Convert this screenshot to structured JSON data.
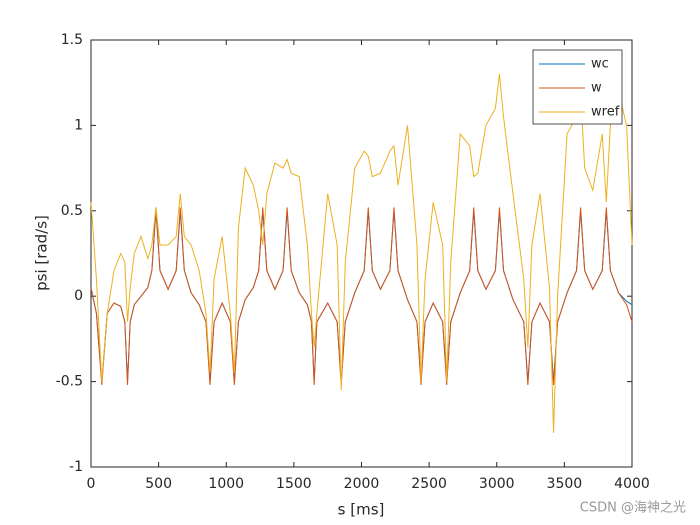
{
  "chart_data": {
    "type": "line",
    "xlabel": "s [ms]",
    "ylabel": "psi [rad/s]",
    "x": [
      0,
      40,
      80,
      120,
      170,
      220,
      250,
      270,
      290,
      320,
      370,
      420,
      450,
      480,
      510,
      570,
      630,
      660,
      690,
      740,
      800,
      850,
      880,
      910,
      970,
      1030,
      1060,
      1090,
      1140,
      1200,
      1240,
      1270,
      1300,
      1360,
      1420,
      1450,
      1480,
      1540,
      1600,
      1630,
      1650,
      1670,
      1750,
      1820,
      1850,
      1880,
      1950,
      2020,
      2050,
      2080,
      2140,
      2210,
      2240,
      2270,
      2340,
      2410,
      2440,
      2470,
      2530,
      2600,
      2630,
      2660,
      2730,
      2800,
      2830,
      2860,
      2920,
      2990,
      3020,
      3050,
      3120,
      3200,
      3230,
      3260,
      3320,
      3390,
      3420,
      3450,
      3520,
      3590,
      3620,
      3650,
      3710,
      3780,
      3810,
      3840,
      3900,
      3960,
      4000
    ],
    "series": [
      {
        "name": "wc",
        "color": "#0072BD",
        "values": [
          0.05,
          -0.1,
          -0.5,
          -0.1,
          -0.04,
          -0.06,
          -0.15,
          -0.5,
          -0.15,
          -0.05,
          0,
          0.05,
          0.15,
          0.5,
          0.15,
          0.04,
          0.15,
          0.5,
          0.15,
          0.02,
          -0.05,
          -0.15,
          -0.5,
          -0.15,
          -0.04,
          -0.15,
          -0.5,
          -0.15,
          -0.02,
          0.05,
          0.15,
          0.5,
          0.15,
          0.04,
          0.15,
          0.5,
          0.15,
          0.02,
          -0.05,
          -0.15,
          -0.5,
          -0.15,
          -0.04,
          -0.15,
          -0.5,
          -0.15,
          0.02,
          0.15,
          0.5,
          0.15,
          0.04,
          0.15,
          0.5,
          0.15,
          -0.02,
          -0.15,
          -0.5,
          -0.15,
          -0.04,
          -0.15,
          -0.5,
          -0.15,
          0.02,
          0.15,
          0.5,
          0.15,
          0.04,
          0.15,
          0.5,
          0.15,
          -0.02,
          -0.15,
          -0.5,
          -0.15,
          -0.04,
          -0.15,
          -0.5,
          -0.15,
          0.02,
          0.15,
          0.5,
          0.15,
          0.04,
          0.15,
          0.5,
          0.15,
          0.02,
          -0.03,
          -0.05
        ]
      },
      {
        "name": "w",
        "color": "#D95319",
        "values": [
          0.05,
          -0.1,
          -0.52,
          -0.1,
          -0.04,
          -0.06,
          -0.15,
          -0.52,
          -0.15,
          -0.05,
          0,
          0.05,
          0.15,
          0.52,
          0.15,
          0.04,
          0.15,
          0.52,
          0.15,
          0.02,
          -0.05,
          -0.15,
          -0.52,
          -0.15,
          -0.04,
          -0.15,
          -0.52,
          -0.15,
          -0.02,
          0.05,
          0.15,
          0.52,
          0.15,
          0.04,
          0.15,
          0.52,
          0.15,
          0.02,
          -0.05,
          -0.15,
          -0.52,
          -0.15,
          -0.04,
          -0.15,
          -0.52,
          -0.15,
          0.02,
          0.15,
          0.52,
          0.15,
          0.04,
          0.15,
          0.52,
          0.15,
          -0.02,
          -0.15,
          -0.52,
          -0.15,
          -0.04,
          -0.15,
          -0.52,
          -0.15,
          0.02,
          0.15,
          0.52,
          0.15,
          0.04,
          0.15,
          0.52,
          0.15,
          -0.02,
          -0.15,
          -0.52,
          -0.15,
          -0.04,
          -0.15,
          -0.52,
          -0.15,
          0.02,
          0.15,
          0.52,
          0.15,
          0.04,
          0.15,
          0.52,
          0.15,
          0.02,
          -0.05,
          -0.15
        ]
      },
      {
        "name": "wref",
        "color": "#EDB120",
        "values": [
          0.55,
          0.1,
          -0.5,
          -0.1,
          0.15,
          0.25,
          0.2,
          -0.15,
          0.05,
          0.25,
          0.35,
          0.22,
          0.3,
          0.52,
          0.3,
          0.3,
          0.35,
          0.6,
          0.35,
          0.3,
          0.15,
          -0.1,
          -0.45,
          0.1,
          0.35,
          -0.1,
          -0.45,
          0.4,
          0.75,
          0.65,
          0.5,
          0.3,
          0.6,
          0.78,
          0.75,
          0.8,
          0.72,
          0.7,
          0.3,
          -0.1,
          -0.3,
          -0.1,
          0.6,
          0.3,
          -0.55,
          0.2,
          0.75,
          0.85,
          0.82,
          0.7,
          0.72,
          0.85,
          0.88,
          0.65,
          1.0,
          0.3,
          -0.5,
          0.1,
          0.55,
          0.3,
          -0.5,
          0.2,
          0.95,
          0.88,
          0.7,
          0.72,
          1.0,
          1.1,
          1.3,
          1.05,
          0.6,
          0.1,
          -0.3,
          0.3,
          0.6,
          0.05,
          -0.8,
          0,
          0.95,
          1.05,
          1.2,
          0.75,
          0.62,
          0.95,
          0.55,
          1.0,
          1.2,
          1.0,
          0.3
        ]
      }
    ],
    "xlim": [
      0,
      4000
    ],
    "xticks": [
      0,
      500,
      1000,
      1500,
      2000,
      2500,
      3000,
      3500,
      4000
    ],
    "ylim": [
      -1,
      1.5
    ],
    "yticks": [
      -1,
      -0.5,
      0,
      0.5,
      1,
      1.5
    ],
    "legend": "top-right"
  },
  "watermark": "CSDN @海神之光"
}
